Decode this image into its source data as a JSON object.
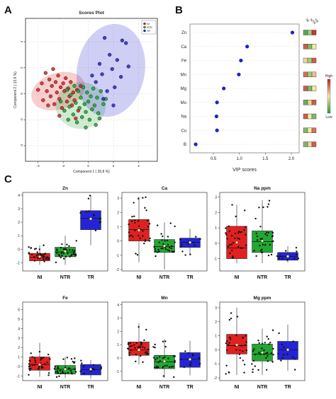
{
  "panel_letters": {
    "a": "A",
    "b": "B",
    "c": "C"
  },
  "colors": {
    "NI": "#e32020",
    "NTR": "#22a832",
    "TR": "#2424d6",
    "heat_high": "#c0221f",
    "heat_mid": "#f4e8a4",
    "heat_low": "#2e9a3a"
  },
  "chart_data": [
    {
      "id": "scores-plot",
      "type": "scatter",
      "title": "Scores Plot",
      "xlabel": "Component 1 ( 26.8 %)",
      "ylabel": "Component 2 ( 13.9 %)",
      "xlim": [
        -5,
        5.5
      ],
      "ylim": [
        -5.2,
        5.8
      ],
      "xticks": [
        -4,
        -2,
        0,
        2,
        4
      ],
      "yticks": [
        -4,
        -2,
        0,
        2,
        4
      ],
      "legend": [
        "NI",
        "NTR",
        "TR"
      ],
      "legend_position": "top-right",
      "ellipses": [
        {
          "group": "NI",
          "cx": -2.4,
          "cy": 0.2,
          "rx": 2.2,
          "ry": 1.4,
          "angle": -18
        },
        {
          "group": "NTR",
          "cx": -0.6,
          "cy": -0.9,
          "rx": 2.0,
          "ry": 1.8,
          "angle": 0
        },
        {
          "group": "TR",
          "cx": 1.8,
          "cy": 1.8,
          "rx": 2.7,
          "ry": 3.6,
          "angle": 10
        }
      ],
      "series": [
        {
          "name": "NI",
          "color": "#e32020",
          "points": [
            [
              -4.0,
              0.3
            ],
            [
              -3.7,
              0.8
            ],
            [
              -3.6,
              -0.5
            ],
            [
              -3.4,
              1.6
            ],
            [
              -3.3,
              0.2
            ],
            [
              -3.1,
              1.1
            ],
            [
              -3.0,
              -0.2
            ],
            [
              -2.9,
              0.6
            ],
            [
              -2.8,
              1.9
            ],
            [
              -2.7,
              -0.8
            ],
            [
              -2.6,
              0.9
            ],
            [
              -2.5,
              0.1
            ],
            [
              -2.4,
              1.4
            ],
            [
              -2.3,
              -0.4
            ],
            [
              -2.2,
              0.5
            ],
            [
              -2.1,
              -1.1
            ],
            [
              -2.0,
              0.8
            ],
            [
              -1.9,
              0.2
            ],
            [
              -1.8,
              1.2
            ],
            [
              -1.7,
              -0.6
            ],
            [
              -1.6,
              0.4
            ],
            [
              -1.5,
              -0.2
            ],
            [
              -1.4,
              0.9
            ],
            [
              -1.3,
              -0.9
            ],
            [
              -1.2,
              0.1
            ],
            [
              -1.1,
              -0.5
            ],
            [
              -0.9,
              0.3
            ],
            [
              -0.8,
              -1.3
            ],
            [
              -0.6,
              0.6
            ],
            [
              -2.3,
              -1.7
            ],
            [
              -3.2,
              -0.9
            ],
            [
              -1.0,
              -1.9
            ]
          ]
        },
        {
          "name": "NTR",
          "color": "#22a832",
          "points": [
            [
              -2.2,
              -0.6
            ],
            [
              -1.9,
              -1.3
            ],
            [
              -1.7,
              0.3
            ],
            [
              -1.5,
              -1.0
            ],
            [
              -1.4,
              -0.1
            ],
            [
              -1.2,
              -1.6
            ],
            [
              -1.1,
              0.6
            ],
            [
              -1.0,
              -0.7
            ],
            [
              -0.9,
              -2.2
            ],
            [
              -0.8,
              0.2
            ],
            [
              -0.7,
              -1.1
            ],
            [
              -0.6,
              -0.3
            ],
            [
              -0.5,
              -1.8
            ],
            [
              -0.4,
              0.5
            ],
            [
              -0.3,
              -0.8
            ],
            [
              -0.2,
              -1.4
            ],
            [
              -0.1,
              0.1
            ],
            [
              0.0,
              -0.6
            ],
            [
              0.1,
              -2.0
            ],
            [
              0.2,
              -0.2
            ],
            [
              0.3,
              -1.2
            ],
            [
              0.4,
              0.4
            ],
            [
              0.5,
              -0.9
            ],
            [
              0.7,
              -0.3
            ],
            [
              0.8,
              -1.5
            ],
            [
              1.0,
              0.2
            ],
            [
              1.2,
              -0.8
            ],
            [
              -0.2,
              -2.6
            ],
            [
              0.6,
              -2.4
            ],
            [
              -1.6,
              -2.0
            ],
            [
              0.9,
              -1.9
            ],
            [
              1.4,
              -0.4
            ]
          ]
        },
        {
          "name": "TR",
          "color": "#2424d6",
          "points": [
            [
              3.0,
              3.9
            ],
            [
              2.7,
              4.1
            ],
            [
              1.3,
              4.3
            ],
            [
              1.7,
              3.0
            ],
            [
              2.3,
              2.6
            ],
            [
              0.9,
              2.3
            ],
            [
              1.9,
              1.9
            ],
            [
              1.1,
              1.5
            ],
            [
              2.6,
              1.3
            ],
            [
              0.6,
              0.9
            ],
            [
              2.1,
              0.5
            ],
            [
              1.5,
              0.2
            ],
            [
              3.2,
              2.1
            ],
            [
              0.3,
              1.4
            ],
            [
              1.2,
              -0.4
            ],
            [
              2.0,
              -0.9
            ]
          ]
        }
      ]
    },
    {
      "id": "vip-scores",
      "type": "scatter",
      "xlabel": "VIP scores",
      "xlim": [
        0.05,
        2.15
      ],
      "xticks": [
        0.5,
        1.0,
        1.5,
        2.0
      ],
      "categories": [
        "Zn",
        "Ca",
        "Fe",
        "Mn",
        "Mg",
        "Mo",
        "Na",
        "Cu",
        "B"
      ],
      "values": [
        2.02,
        1.15,
        1.03,
        0.99,
        0.7,
        0.57,
        0.56,
        0.57,
        0.16
      ],
      "heatmap_columns": [
        "NI",
        "NTR",
        "TR"
      ],
      "heatmap_levels": [
        [
          0.1,
          0.3,
          0.95
        ],
        [
          0.85,
          0.2,
          0.5
        ],
        [
          0.55,
          0.3,
          0.85
        ],
        [
          0.8,
          0.3,
          0.6
        ],
        [
          0.85,
          0.2,
          0.5
        ],
        [
          0.15,
          0.55,
          0.85
        ],
        [
          0.85,
          0.5,
          0.2
        ],
        [
          0.2,
          0.5,
          0.8
        ],
        [
          0.2,
          0.55,
          0.85
        ]
      ],
      "colorbar": {
        "high": "High",
        "low": "Low"
      }
    },
    {
      "id": "box-Zn",
      "type": "box",
      "title": "Zn",
      "categories": [
        "NI",
        "NTR",
        "TR"
      ],
      "ylim": [
        -1.6,
        4.2
      ],
      "yticks": [
        -1,
        0,
        1,
        2,
        3,
        4
      ],
      "boxes": [
        {
          "q1": -0.85,
          "median": -0.6,
          "q3": -0.3,
          "whisker_low": -1.15,
          "whisker_high": 0.3,
          "mean": -0.55
        },
        {
          "q1": -0.55,
          "median": -0.2,
          "q3": 0.15,
          "whisker_low": -1.15,
          "whisker_high": 1.0,
          "mean": -0.15
        },
        {
          "q1": 1.45,
          "median": 2.3,
          "q3": 2.85,
          "whisker_low": 0.3,
          "whisker_high": 4.0,
          "mean": 2.25
        }
      ]
    },
    {
      "id": "box-Ca",
      "type": "box",
      "title": "Ca",
      "categories": [
        "NI",
        "NTR",
        "TR"
      ],
      "ylim": [
        -2.1,
        3.4
      ],
      "yticks": [
        -2,
        -1,
        0,
        1,
        2,
        3
      ],
      "boxes": [
        {
          "q1": 0.0,
          "median": 0.8,
          "q3": 1.5,
          "whisker_low": -1.5,
          "whisker_high": 3.1,
          "mean": 0.75
        },
        {
          "q1": -0.8,
          "median": -0.4,
          "q3": 0.1,
          "whisker_low": -2.0,
          "whisker_high": 1.3,
          "mean": -0.35
        },
        {
          "q1": -0.45,
          "median": -0.1,
          "q3": 0.2,
          "whisker_low": -1.0,
          "whisker_high": 0.85,
          "mean": -0.1
        }
      ]
    },
    {
      "id": "box-Na",
      "type": "box",
      "title": "Na ppm",
      "categories": [
        "NI",
        "NTR",
        "TR"
      ],
      "ylim": [
        -1.8,
        3.3
      ],
      "yticks": [
        -1,
        0,
        1,
        2,
        3
      ],
      "boxes": [
        {
          "q1": -1.0,
          "median": -0.3,
          "q3": 1.1,
          "whisker_low": -1.3,
          "whisker_high": 2.5,
          "mean": 0.05
        },
        {
          "q1": -0.6,
          "median": 0.1,
          "q3": 0.8,
          "whisker_low": -1.3,
          "whisker_high": 2.8,
          "mean": 0.15
        },
        {
          "q1": -1.1,
          "median": -0.85,
          "q3": -0.6,
          "whisker_low": -1.25,
          "whisker_high": -0.2,
          "mean": -0.85
        }
      ]
    },
    {
      "id": "box-Fe",
      "type": "box",
      "title": "Fe",
      "categories": [
        "NI",
        "NTR",
        "TR"
      ],
      "ylim": [
        -1.5,
        6.8
      ],
      "yticks": [
        -1,
        0,
        1,
        2,
        3,
        4,
        5,
        6
      ],
      "boxes": [
        {
          "q1": -0.4,
          "median": 0.2,
          "q3": 1.0,
          "whisker_low": -1.1,
          "whisker_high": 2.5,
          "mean": 0.2
        },
        {
          "q1": -0.8,
          "median": -0.3,
          "q3": 0.1,
          "whisker_low": -1.2,
          "whisker_high": 1.0,
          "mean": -0.3
        },
        {
          "q1": -0.9,
          "median": -0.35,
          "q3": 0.2,
          "whisker_low": -1.3,
          "whisker_high": 0.7,
          "mean": -0.3
        }
      ]
    },
    {
      "id": "box-Mn",
      "type": "box",
      "title": "Mn",
      "categories": [
        "NI",
        "NTR",
        "TR"
      ],
      "ylim": [
        -1.7,
        4.2
      ],
      "yticks": [
        -1,
        0,
        1,
        2,
        3,
        4
      ],
      "boxes": [
        {
          "q1": 0.2,
          "median": 0.6,
          "q3": 1.2,
          "whisker_low": -0.5,
          "whisker_high": 2.6,
          "mean": 0.6
        },
        {
          "q1": -0.8,
          "median": -0.3,
          "q3": 0.2,
          "whisker_low": -1.5,
          "whisker_high": 1.4,
          "mean": -0.25
        },
        {
          "q1": -0.7,
          "median": -0.1,
          "q3": 0.4,
          "whisker_low": -1.3,
          "whisker_high": 1.3,
          "mean": -0.1
        }
      ]
    },
    {
      "id": "box-Mg",
      "type": "box",
      "title": "Mg ppm",
      "categories": [
        "NI",
        "NTR",
        "TR"
      ],
      "ylim": [
        -2.2,
        3.4
      ],
      "yticks": [
        -2,
        -1,
        0,
        1,
        2,
        3
      ],
      "boxes": [
        {
          "q1": -0.3,
          "median": 0.3,
          "q3": 1.1,
          "whisker_low": -1.8,
          "whisker_high": 3.0,
          "mean": 0.35
        },
        {
          "q1": -0.8,
          "median": -0.3,
          "q3": 0.4,
          "whisker_low": -1.8,
          "whisker_high": 1.5,
          "mean": -0.2
        },
        {
          "q1": -0.7,
          "median": 0.0,
          "q3": 0.6,
          "whisker_low": -1.5,
          "whisker_high": 1.8,
          "mean": 0.0
        }
      ]
    }
  ]
}
